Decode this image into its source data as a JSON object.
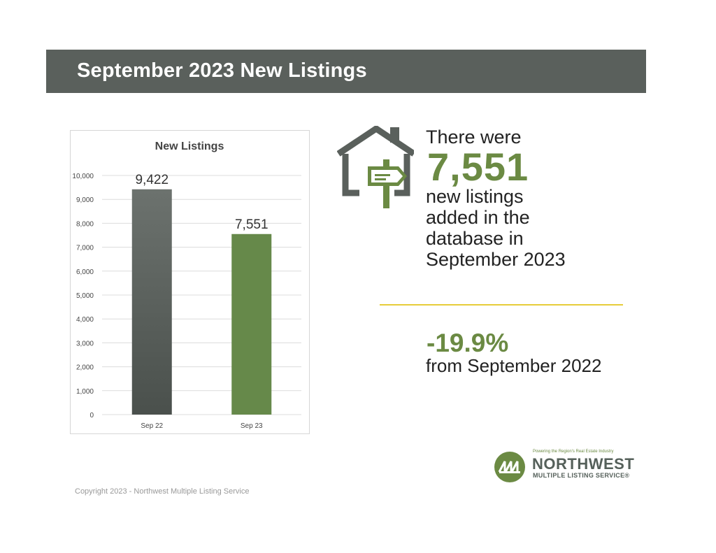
{
  "banner": {
    "title": "September 2023 New Listings"
  },
  "chart_data": {
    "type": "bar",
    "title": "New Listings",
    "categories": [
      "Sep 22",
      "Sep 23"
    ],
    "values": [
      9422,
      7551
    ],
    "data_labels": [
      "9,422",
      "7,551"
    ],
    "bar_colors": [
      "#5b615d",
      "#66894a"
    ],
    "ylim": [
      0,
      10000
    ],
    "yticks": [
      0,
      1000,
      2000,
      3000,
      4000,
      5000,
      6000,
      7000,
      8000,
      9000,
      10000
    ],
    "ytick_labels": [
      "0",
      "1,000",
      "2,000",
      "3,000",
      "4,000",
      "5,000",
      "6,000",
      "7,000",
      "8,000",
      "9,000",
      "10,000"
    ],
    "xlabel": "",
    "ylabel": "",
    "grid": true,
    "legend": "none"
  },
  "stat": {
    "intro": "There were",
    "number": "7,551",
    "description_lines": [
      "new listings",
      "added in the",
      "database in",
      "September 2023"
    ]
  },
  "change": {
    "value": "-19.9%",
    "description": "from September 2022"
  },
  "logo": {
    "tagline": "Powering the Region's Real Estate Industry",
    "name": "NORTHWEST",
    "subname": "MULTIPLE LISTING SERVICE®"
  },
  "footer": {
    "copyright": "Copyright 2023 - Northwest Multiple Listing Service"
  },
  "colors": {
    "banner": "#5a605c",
    "accent_green": "#6b8a43",
    "divider_yellow": "#e6cc3a"
  },
  "icons": [
    "house-signpost-icon",
    "nwmls-logo-icon"
  ]
}
